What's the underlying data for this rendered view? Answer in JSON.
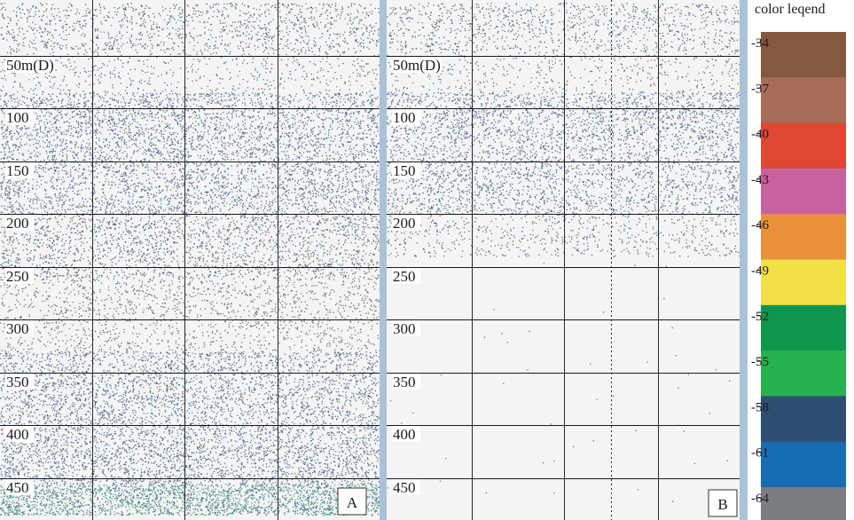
{
  "chart_data": [
    {
      "type": "heatmap",
      "panel_label": "A",
      "y_axis": {
        "unit_label": "50m(D)",
        "ticks": [
          50,
          100,
          150,
          200,
          250,
          300,
          350,
          400,
          450
        ],
        "range_m": [
          0,
          485
        ],
        "inverted": true
      },
      "grid": true,
      "scatter_layers": [
        {
          "depth_from": 0,
          "depth_to": 45,
          "density": 0.55,
          "color_mix": [
            "gray",
            "gray",
            "navy"
          ]
        },
        {
          "depth_from": 45,
          "depth_to": 85,
          "density": 0.28,
          "color_mix": [
            "gray",
            "gray",
            "navy"
          ]
        },
        {
          "depth_from": 85,
          "depth_to": 125,
          "density": 0.9,
          "color_mix": [
            "navy",
            "blue",
            "gray"
          ]
        },
        {
          "depth_from": 125,
          "depth_to": 200,
          "density": 0.85,
          "color_mix": [
            "gray",
            "navy",
            "blue"
          ]
        },
        {
          "depth_from": 200,
          "depth_to": 260,
          "density": 0.72,
          "color_mix": [
            "gray",
            "gray",
            "navy"
          ]
        },
        {
          "depth_from": 260,
          "depth_to": 330,
          "density": 0.45,
          "color_mix": [
            "gray",
            "gray",
            "gray"
          ]
        },
        {
          "depth_from": 330,
          "depth_to": 420,
          "density": 0.85,
          "color_mix": [
            "gray",
            "navy",
            "blue"
          ]
        },
        {
          "depth_from": 420,
          "depth_to": 455,
          "density": 1.0,
          "color_mix": [
            "navy",
            "blue",
            "gray"
          ]
        },
        {
          "depth_from": 455,
          "depth_to": 485,
          "density": 1.6,
          "color_mix": [
            "green",
            "navy",
            "blue",
            "teal"
          ]
        }
      ]
    },
    {
      "type": "heatmap",
      "panel_label": "B",
      "y_axis": {
        "unit_label": "50m(D)",
        "ticks": [
          50,
          100,
          150,
          200,
          250,
          300,
          350,
          400,
          450
        ],
        "range_m": [
          0,
          485
        ],
        "inverted": true
      },
      "grid": true,
      "scatter_layers": [
        {
          "depth_from": 0,
          "depth_to": 45,
          "density": 0.5,
          "color_mix": [
            "gray",
            "gray",
            "navy"
          ]
        },
        {
          "depth_from": 45,
          "depth_to": 85,
          "density": 0.25,
          "color_mix": [
            "gray",
            "gray",
            "navy"
          ]
        },
        {
          "depth_from": 85,
          "depth_to": 125,
          "density": 0.85,
          "color_mix": [
            "navy",
            "blue",
            "gray"
          ]
        },
        {
          "depth_from": 125,
          "depth_to": 200,
          "density": 0.7,
          "color_mix": [
            "gray",
            "navy",
            "blue"
          ]
        },
        {
          "depth_from": 200,
          "depth_to": 240,
          "density": 0.35,
          "color_mix": [
            "gray",
            "gray",
            "navy"
          ]
        },
        {
          "depth_from": 240,
          "depth_to": 485,
          "density": 0.004,
          "color_mix": [
            "gray"
          ]
        }
      ]
    }
  ],
  "legend": {
    "title": "color leqend",
    "ticks": [
      "-34",
      "-37",
      "-40",
      "-43",
      "-46",
      "-49",
      "-52",
      "-55",
      "-58",
      "-61",
      "-64"
    ],
    "colors": [
      "#855840",
      "#a86c58",
      "#df4634",
      "#c8629e",
      "#e8913a",
      "#f2e046",
      "#0f954c",
      "#27b14f",
      "#2d4e70",
      "#166db3",
      "#7b7d80"
    ]
  },
  "echo_colors": {
    "gray": "#5d5f62",
    "navy": "#2d4e70",
    "blue": "#3f66a8",
    "green": "#2aa052",
    "teal": "#3c8a86"
  }
}
